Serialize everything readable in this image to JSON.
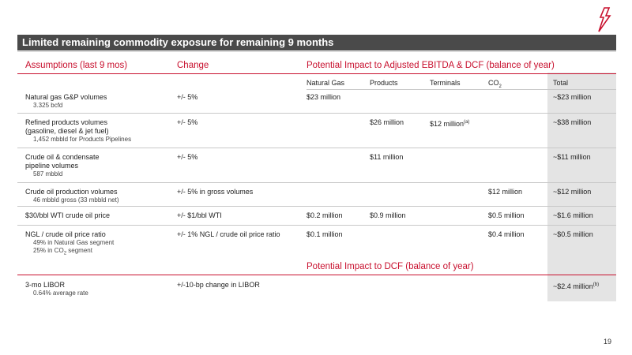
{
  "title": "Limited remaining commodity exposure for remaining 9 months",
  "headers": {
    "assumptions": "Assumptions (last 9 mos)",
    "change": "Change",
    "impact": "Potential Impact to Adjusted EBITDA & DCF (balance of year)",
    "impact_dcf": "Potential Impact to DCF (balance of year)",
    "col_natural_gas": "Natural Gas",
    "col_products": "Products",
    "col_terminals": "Terminals",
    "col_co2": "CO",
    "col_co2_sub": "2",
    "col_total": "Total"
  },
  "rows": [
    {
      "label": "Natural gas G&P volumes",
      "sub1": "3.325 bcfd",
      "sub2": "",
      "change": "+/- 5%",
      "ng": "$23 million",
      "products": "",
      "terminals": "",
      "terminals_note": "",
      "co2": "",
      "total": "~$23 million"
    },
    {
      "label": "Refined products volumes",
      "label2": "(gasoline, diesel & jet fuel)",
      "sub1": "1,452 mbbld for Products Pipelines",
      "change": "+/- 5%",
      "ng": "",
      "products": "$26 million",
      "terminals": "$12 million",
      "terminals_note": "(a)",
      "co2": "",
      "total": "~$38 million"
    },
    {
      "label": "Crude oil & condensate",
      "label2": "pipeline volumes",
      "sub1": "587 mbbld",
      "change": "+/- 5%",
      "ng": "",
      "products": "$11 million",
      "terminals": "",
      "co2": "",
      "total": "~$11 million"
    },
    {
      "label": "Crude oil production volumes",
      "sub1": "46 mbbld gross (33 mbbld net)",
      "change": "+/- 5% in gross volumes",
      "ng": "",
      "products": "",
      "terminals": "",
      "co2": "$12 million",
      "total": "~$12 million"
    },
    {
      "label": "$30/bbl WTI crude oil price",
      "change": "+/- $1/bbl WTI",
      "ng": "$0.2 million",
      "products": "$0.9 million",
      "terminals": "",
      "co2": "$0.5 million",
      "total": "~$1.6 million"
    },
    {
      "label": "NGL / crude oil price ratio",
      "sub1": "49% in Natural Gas segment",
      "sub2": "25% in CO",
      "sub2_sub": "2",
      "sub2_tail": " segment",
      "change": "+/- 1% NGL / crude oil price ratio",
      "ng": "$0.1 million",
      "products": "",
      "terminals": "",
      "co2": "$0.4 million",
      "total": "~$0.5 million"
    }
  ],
  "libor": {
    "label": "3-mo LIBOR",
    "sub1": "0.64% average rate",
    "change": "+/-10-bp change in LIBOR",
    "total": "~$2.4 million",
    "total_note": "(b)"
  },
  "page_number": "19"
}
